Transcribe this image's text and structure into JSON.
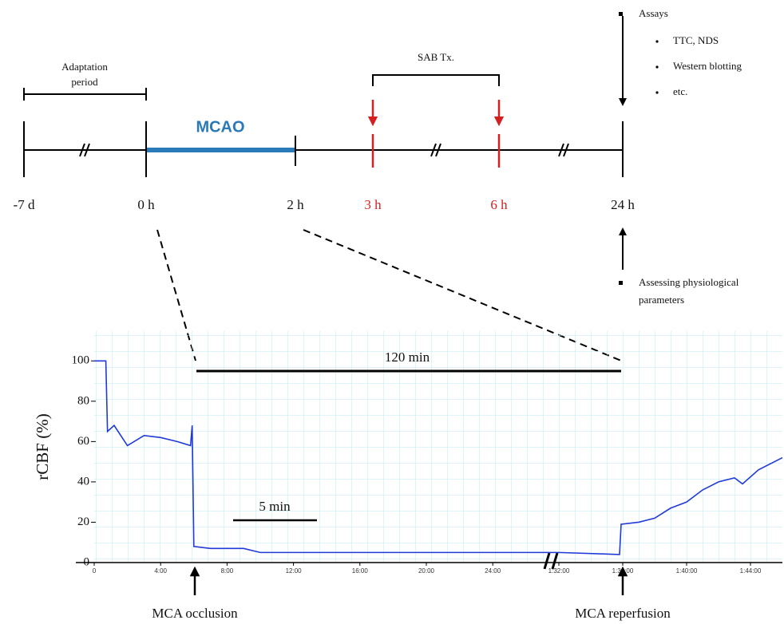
{
  "timeline": {
    "adaptation": [
      "Adaptation",
      "period"
    ],
    "mcao": "MCAO",
    "treatment": "SAB Tx.",
    "times": [
      "-7 d",
      "0 h",
      "2 h",
      "3 h",
      "6 h",
      "24 h"
    ],
    "assays": {
      "title": "Assays",
      "items": [
        "TTC, NDS",
        "Western blotting",
        "etc."
      ]
    },
    "physiology": [
      "Assessing physiological",
      "parameters"
    ]
  },
  "chart_data": {
    "type": "line",
    "y_label": "rCBF (%)",
    "x": [
      0,
      0.7,
      0.8,
      1.2,
      2,
      3,
      4,
      5,
      5.8,
      5.9,
      6,
      7,
      9,
      10,
      15,
      20,
      27,
      92,
      95.8,
      95.9,
      97,
      98,
      99,
      100,
      101,
      102,
      103,
      103.5,
      104.5,
      106
    ],
    "series": [
      {
        "color": "#1f3ad8",
        "values": [
          100,
          100,
          65,
          68,
          58,
          63,
          62,
          60,
          58,
          68,
          8,
          7,
          7,
          5,
          5,
          5,
          5,
          5,
          4,
          19,
          20,
          22,
          27,
          30,
          36,
          40,
          42,
          39,
          46,
          52
        ]
      }
    ],
    "xlim": [
      0,
      106
    ],
    "x_break": [
      27.5,
      91.5
    ],
    "xticks": [
      {
        "value": 0,
        "label": "0"
      },
      {
        "value": 4,
        "label": "4:00"
      },
      {
        "value": 8,
        "label": "8:00"
      },
      {
        "value": 12,
        "label": "12:00"
      },
      {
        "value": 16,
        "label": "16:00"
      },
      {
        "value": 20,
        "label": "20:00"
      },
      {
        "value": 24,
        "label": "24:00"
      },
      {
        "value": 92,
        "label": "1:32:00"
      },
      {
        "value": 96,
        "label": "1:36:00"
      },
      {
        "value": 100,
        "label": "1:40:00"
      },
      {
        "value": 104,
        "label": "1:44:00"
      }
    ],
    "ylim": [
      0,
      110
    ],
    "yticks": [
      0,
      20,
      40,
      60,
      80,
      100
    ],
    "grid": true,
    "annotations": {
      "span_120": "120 min",
      "span_5": "5 min",
      "occlusion": "MCA occlusion",
      "reperfusion": "MCA reperfusion"
    }
  }
}
